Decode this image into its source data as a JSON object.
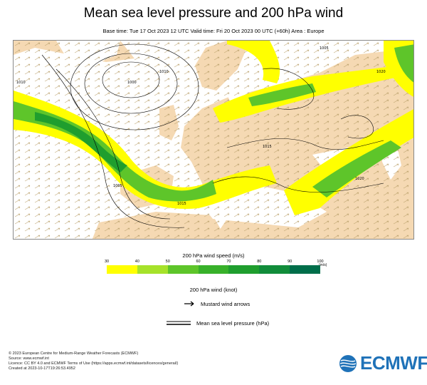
{
  "header": {
    "title": "Mean sea level pressure and 200 hPa wind",
    "subtitle": "Base time: Tue 17 Oct 2023 12 UTC Valid time: Fri 20 Oct 2023 00 UTC (+60h) Area : Europe"
  },
  "map": {
    "area": "Europe",
    "colors": {
      "sea": "#ffffff",
      "land": "#f5d9b3",
      "wind_30_40": "#ffff00",
      "wind_40_50": "#a6e22a",
      "wind_50_60": "#5ec52a",
      "wind_60_70": "#38b12a",
      "wind_70_80": "#1f9e2e",
      "wind_80_90": "#118c3a",
      "wind_90_100": "#006e4a",
      "isobar": "#000000"
    },
    "isobar_labels": [
      "1010",
      "1010",
      "1005",
      "1015",
      "1015",
      "1000",
      "1005",
      "1020",
      "1020"
    ]
  },
  "legend": {
    "colorbar_title": "200 hPa wind speed (m/s)",
    "ticks": [
      "30",
      "40",
      "50",
      "60",
      "70",
      "80",
      "90",
      "100"
    ],
    "unit": "(m/s)",
    "colors": [
      "#ffff00",
      "#a6e22a",
      "#5ec52a",
      "#38b12a",
      "#1f9e2e",
      "#118c3a",
      "#006e4a"
    ],
    "knot_label": "200 hPa wind (knot)",
    "arrow_label": "Mustard wind arrows",
    "mslp_label": "Mean sea level pressure (hPa)"
  },
  "footer": {
    "line1": "© 2023 European Centre for Medium-Range Weather Forecasts (ECMWF)",
    "line2": "Source: www.ecmwf.int",
    "line3": "Licence: CC BY 4.0 and ECMWF Terms of Use (https://apps.ecmwf.int/datasets/licences/general/)",
    "line4": "Created at 2023-10-17T19:26:53.4952"
  },
  "logo": {
    "text": "ECMWF"
  }
}
